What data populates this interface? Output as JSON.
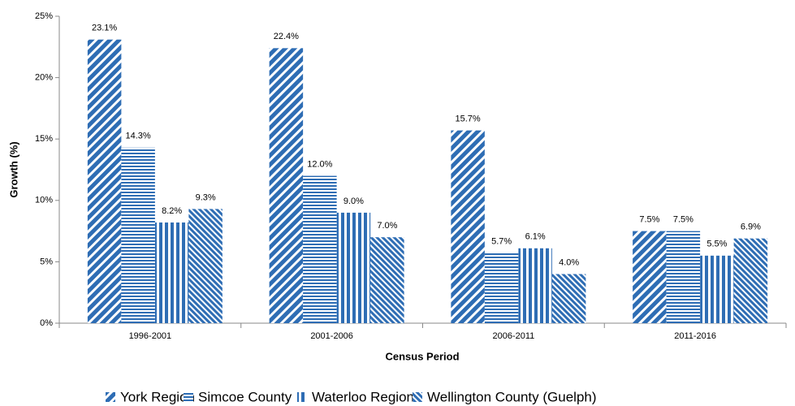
{
  "chart_data": {
    "type": "bar",
    "x_label": "Census Period",
    "y_label": "Growth (%)",
    "categories": [
      "1996-2001",
      "2001-2006",
      "2006-2011",
      "2011-2016"
    ],
    "series": [
      {
        "name": "York Region",
        "color": "#2e6db4",
        "pattern": "diagonal",
        "values": [
          23.1,
          22.4,
          15.7,
          7.5
        ],
        "value_labels": [
          "23.1%",
          "22.4%",
          "15.7%",
          "7.5%"
        ]
      },
      {
        "name": "Simcoe County",
        "color": "#2e6db4",
        "pattern": "checker",
        "values": [
          14.3,
          12.0,
          5.7,
          7.5
        ],
        "value_labels": [
          "14.3%",
          "12.0%",
          "5.7%",
          "7.5%"
        ]
      },
      {
        "name": "Waterloo Region",
        "color": "#2e6db4",
        "pattern": "vertical",
        "values": [
          8.2,
          9.0,
          6.1,
          5.5
        ],
        "value_labels": [
          "8.2%",
          "9.0%",
          "6.1%",
          "5.5%"
        ]
      },
      {
        "name": "Wellington County (Guelph)",
        "color": "#2e6db4",
        "pattern": "back-diagonal",
        "values": [
          9.3,
          7.0,
          4.0,
          6.9
        ],
        "value_labels": [
          "9.3%",
          "7.0%",
          "4.0%",
          "6.9%"
        ]
      }
    ],
    "ylim": [
      0,
      25
    ],
    "yticks": [
      {
        "value": 0,
        "label": "0%"
      },
      {
        "value": 5,
        "label": "5%"
      },
      {
        "value": 10,
        "label": "10%"
      },
      {
        "value": 15,
        "label": "15%"
      },
      {
        "value": 20,
        "label": "20%"
      },
      {
        "value": 25,
        "label": "25%"
      }
    ],
    "grid": false,
    "legend": "bottom"
  }
}
